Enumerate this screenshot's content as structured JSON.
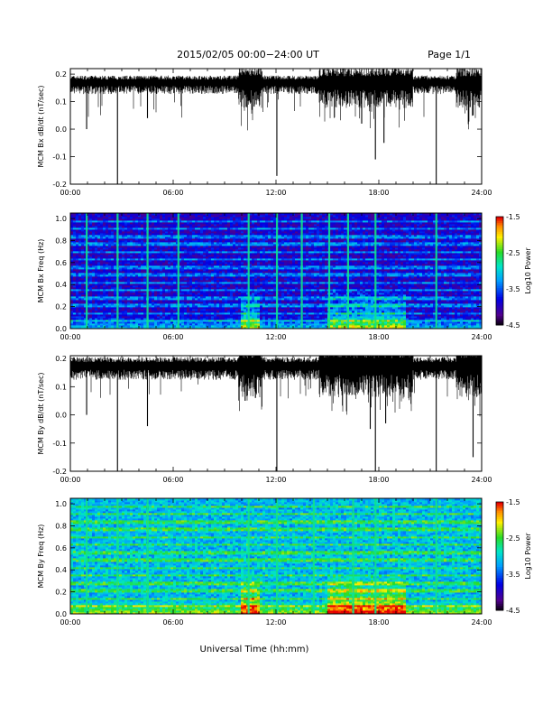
{
  "header": {
    "title": "2015/02/05  00:00−24:00 UT",
    "page_label": "Page 1/1"
  },
  "x_axis": {
    "label": "Universal Time (hh:mm)",
    "ticks": [
      "00:00",
      "06:00",
      "12:00",
      "18:00",
      "24:00"
    ],
    "range_hours": [
      0,
      24
    ]
  },
  "chart_data": [
    {
      "type": "line",
      "panel": "Bx time series",
      "ylabel": "MCM Bx dB/dt (nT/sec)",
      "ylim": [
        -0.2,
        0.22
      ],
      "yticks": [
        "-0.2",
        "-0.1",
        "0.0",
        "0.1",
        "0.2"
      ],
      "baseline": 0.17,
      "noise_amplitude": 0.025,
      "deep_dips": [
        {
          "t": 0.95,
          "y": 0.0
        },
        {
          "t": 2.75,
          "y": -0.2
        },
        {
          "t": 4.5,
          "y": 0.04
        },
        {
          "t": 10.3,
          "y": 0.08
        },
        {
          "t": 10.6,
          "y": 0.07
        },
        {
          "t": 12.05,
          "y": -0.17
        },
        {
          "t": 17.0,
          "y": 0.02
        },
        {
          "t": 17.8,
          "y": -0.11
        },
        {
          "t": 18.3,
          "y": -0.05
        },
        {
          "t": 21.35,
          "y": -0.2
        },
        {
          "t": 23.5,
          "y": 0.05
        }
      ]
    },
    {
      "type": "heatmap",
      "panel": "Bx spectrogram",
      "ylabel": "MCM Bx Freq (Hz)",
      "ylim": [
        0.0,
        1.05
      ],
      "yticks": [
        "0.0",
        "0.2",
        "0.4",
        "0.6",
        "0.8",
        "1.0"
      ],
      "colorbar": {
        "label": "Log10 Power",
        "range": [
          -4.5,
          -1.5
        ],
        "ticks": [
          "-1.5",
          "-2.5",
          "-3.5",
          "-4.5"
        ]
      },
      "background_level": -3.9,
      "harmonic_lines_hz": [
        0.07,
        0.14,
        0.21,
        0.28,
        0.35,
        0.42,
        0.49,
        0.56,
        0.63,
        0.7,
        0.77,
        0.84,
        0.91,
        0.98
      ],
      "active_intervals_hours": [
        [
          10.0,
          11.0
        ],
        [
          15.0,
          19.5
        ]
      ],
      "bright_times_hours": [
        0.95,
        2.75,
        4.5,
        6.3,
        10.4,
        12.05,
        13.5,
        15.1,
        16.2,
        17.8,
        21.35
      ]
    },
    {
      "type": "line",
      "panel": "By time series",
      "ylabel": "MCM By dB/dt (nT/sec)",
      "ylim": [
        -0.2,
        0.21
      ],
      "yticks": [
        "-0.2",
        "-0.1",
        "0.0",
        "0.1",
        "0.2"
      ],
      "baseline": 0.175,
      "noise_amplitude": 0.03,
      "deep_dips": [
        {
          "t": 0.95,
          "y": 0.0
        },
        {
          "t": 2.75,
          "y": -0.2
        },
        {
          "t": 4.5,
          "y": -0.04
        },
        {
          "t": 10.2,
          "y": 0.05
        },
        {
          "t": 10.8,
          "y": 0.06
        },
        {
          "t": 12.05,
          "y": -0.2
        },
        {
          "t": 17.5,
          "y": -0.05
        },
        {
          "t": 17.8,
          "y": -0.2
        },
        {
          "t": 18.4,
          "y": -0.03
        },
        {
          "t": 21.35,
          "y": -0.2
        },
        {
          "t": 23.5,
          "y": -0.15
        }
      ]
    },
    {
      "type": "heatmap",
      "panel": "By spectrogram",
      "ylabel": "MCM By Freq (Hz)",
      "ylim": [
        0.0,
        1.05
      ],
      "yticks": [
        "0.0",
        "0.2",
        "0.4",
        "0.6",
        "0.8",
        "1.0"
      ],
      "colorbar": {
        "label": "Log10 Power",
        "range": [
          -4.5,
          -1.5
        ],
        "ticks": [
          "-1.5",
          "-2.5",
          "-3.5",
          "-4.5"
        ]
      },
      "background_level": -3.1,
      "harmonic_lines_hz": [
        0.07,
        0.14,
        0.21,
        0.28,
        0.35,
        0.42,
        0.49,
        0.56,
        0.63,
        0.7,
        0.77,
        0.84,
        0.91,
        0.98
      ],
      "active_intervals_hours": [
        [
          10.0,
          11.0
        ],
        [
          15.0,
          19.5
        ]
      ],
      "bright_times_hours": [
        0.95,
        2.75,
        4.5,
        10.4,
        12.05,
        14.2,
        16.5,
        17.8,
        21.35
      ]
    }
  ]
}
